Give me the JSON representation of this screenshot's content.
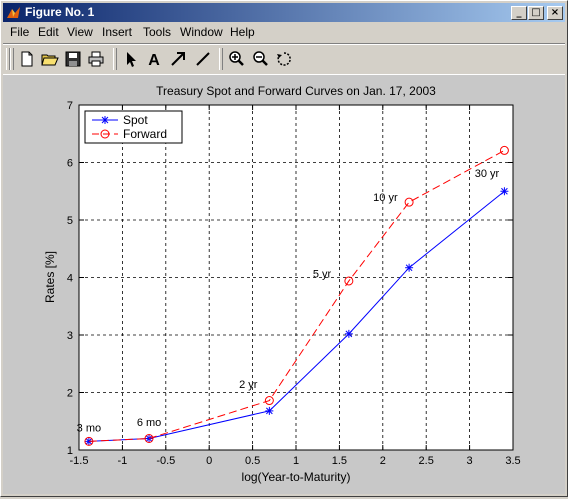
{
  "window": {
    "title": "Figure No. 1",
    "minimize_glyph": "_",
    "maximize_glyph": "□",
    "close_glyph": "×"
  },
  "menu": {
    "file": "File",
    "edit": "Edit",
    "view": "View",
    "insert": "Insert",
    "tools": "Tools",
    "window": "Window",
    "help": "Help"
  },
  "toolbar": {
    "icons": [
      "new-file-icon",
      "open-folder-icon",
      "save-disk-icon",
      "print-icon",
      "select-arrow-icon",
      "text-A-icon",
      "arrow-icon",
      "line-icon",
      "zoom-in-icon",
      "zoom-out-icon",
      "rotate-icon"
    ],
    "text_tool_glyph": "A"
  },
  "chart_data": {
    "type": "line",
    "title": "Treasury Spot and Forward Curves on Jan. 17, 2003",
    "xlabel": "log(Year-to-Maturity)",
    "ylabel": "Rates [%]",
    "xlim": [
      -1.5,
      3.5
    ],
    "ylim": [
      1,
      7
    ],
    "xticks": [
      "-1.5",
      "-1",
      "-0.5",
      "0",
      "0.5",
      "1",
      "1.5",
      "2",
      "2.5",
      "3",
      "3.5"
    ],
    "xtick_values": [
      -1.5,
      -1,
      -0.5,
      0,
      0.5,
      1,
      1.5,
      2,
      2.5,
      3,
      3.5
    ],
    "yticks": [
      "1",
      "2",
      "3",
      "4",
      "5",
      "6",
      "7"
    ],
    "ytick_values": [
      1,
      2,
      3,
      4,
      5,
      6,
      7
    ],
    "grid": true,
    "legend_position": "top-left",
    "x": [
      -1.386,
      -0.693,
      0.693,
      1.609,
      2.303,
      3.401
    ],
    "series": [
      {
        "name": "Spot",
        "color": "#0000ff",
        "marker": "*",
        "style": "solid",
        "values": [
          1.15,
          1.2,
          1.68,
          3.02,
          4.17,
          5.5
        ]
      },
      {
        "name": "Forward",
        "color": "#ff0000",
        "marker": "o",
        "style": "dashed",
        "values": [
          1.15,
          1.2,
          1.86,
          3.94,
          5.31,
          6.21
        ]
      }
    ],
    "annotations": [
      {
        "text": "3 mo",
        "x": -1.386,
        "y": 1.32
      },
      {
        "text": "6 mo",
        "x": -0.693,
        "y": 1.42
      },
      {
        "text": "2 yr",
        "x": 0.45,
        "y": 2.08
      },
      {
        "text": "5 yr",
        "x": 1.3,
        "y": 4.0
      },
      {
        "text": "10 yr",
        "x": 2.03,
        "y": 5.33
      },
      {
        "text": "30 yr",
        "x": 3.2,
        "y": 5.75
      }
    ]
  }
}
